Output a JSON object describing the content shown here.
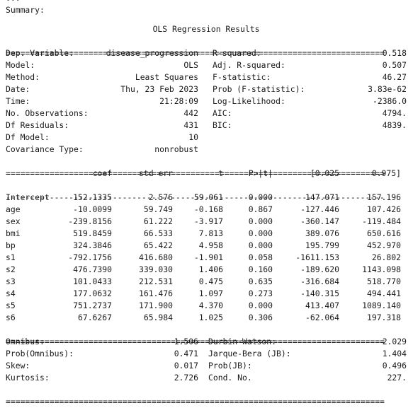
{
  "cut_line": "...",
  "summary_label": "Summary:",
  "title": "OLS Regression Results",
  "info_left": [
    {
      "label": "Dep. Variable:",
      "value": "disease_progression"
    },
    {
      "label": "Model:",
      "value": "OLS"
    },
    {
      "label": "Method:",
      "value": "Least Squares"
    },
    {
      "label": "Date:",
      "value": "Thu, 23 Feb 2023"
    },
    {
      "label": "Time:",
      "value": "21:28:09"
    },
    {
      "label": "No. Observations:",
      "value": "442"
    },
    {
      "label": "Df Residuals:",
      "value": "431"
    },
    {
      "label": "Df Model:",
      "value": "10"
    },
    {
      "label": "Covariance Type:",
      "value": "nonrobust"
    }
  ],
  "info_right": [
    {
      "label": "R-squared:",
      "value": "0.518"
    },
    {
      "label": "Adj. R-squared:",
      "value": "0.507"
    },
    {
      "label": "F-statistic:",
      "value": "46.27"
    },
    {
      "label": "Prob (F-statistic):",
      "value": "3.83e-62"
    },
    {
      "label": "Log-Likelihood:",
      "value": "-2386.0"
    },
    {
      "label": "AIC:",
      "value": "4794."
    },
    {
      "label": "BIC:",
      "value": "4839."
    }
  ],
  "coef_headers": [
    "coef",
    "std err",
    "t",
    "P>|t|",
    "[0.025",
    "0.975]"
  ],
  "coef_rows": [
    {
      "name": "Intercept",
      "values": [
        "152.1335",
        "2.576",
        "59.061",
        "0.000",
        "147.071",
        "157.196"
      ]
    },
    {
      "name": "age",
      "values": [
        "-10.0099",
        "59.749",
        "-0.168",
        "0.867",
        "-127.446",
        "107.426"
      ]
    },
    {
      "name": "sex",
      "values": [
        "-239.8156",
        "61.222",
        "-3.917",
        "0.000",
        "-360.147",
        "-119.484"
      ]
    },
    {
      "name": "bmi",
      "values": [
        "519.8459",
        "66.533",
        "7.813",
        "0.000",
        "389.076",
        "650.616"
      ]
    },
    {
      "name": "bp",
      "values": [
        "324.3846",
        "65.422",
        "4.958",
        "0.000",
        "195.799",
        "452.970"
      ]
    },
    {
      "name": "s1",
      "values": [
        "-792.1756",
        "416.680",
        "-1.901",
        "0.058",
        "-1611.153",
        "26.802"
      ]
    },
    {
      "name": "s2",
      "values": [
        "476.7390",
        "339.030",
        "1.406",
        "0.160",
        "-189.620",
        "1143.098"
      ]
    },
    {
      "name": "s3",
      "values": [
        "101.0433",
        "212.531",
        "0.475",
        "0.635",
        "-316.684",
        "518.770"
      ]
    },
    {
      "name": "s4",
      "values": [
        "177.0632",
        "161.476",
        "1.097",
        "0.273",
        "-140.315",
        "494.441"
      ]
    },
    {
      "name": "s5",
      "values": [
        "751.2737",
        "171.900",
        "4.370",
        "0.000",
        "413.407",
        "1089.140"
      ]
    },
    {
      "name": "s6",
      "values": [
        "67.6267",
        "65.984",
        "1.025",
        "0.306",
        "-62.064",
        "197.318"
      ]
    }
  ],
  "diag_left": [
    {
      "label": "Omnibus:",
      "value": "1.506"
    },
    {
      "label": "Prob(Omnibus):",
      "value": "0.471"
    },
    {
      "label": "Skew:",
      "value": "0.017"
    },
    {
      "label": "Kurtosis:",
      "value": "2.726"
    }
  ],
  "diag_right": [
    {
      "label": "Durbin-Watson:",
      "value": "2.029"
    },
    {
      "label": "Jarque-Bera (JB):",
      "value": "1.404"
    },
    {
      "label": "Prob(JB):",
      "value": "0.496"
    },
    {
      "label": "Cond. No.",
      "value": "227."
    }
  ],
  "rule_double": "==============================================================================",
  "rule_single": "------------------------------------------------------------------------------"
}
